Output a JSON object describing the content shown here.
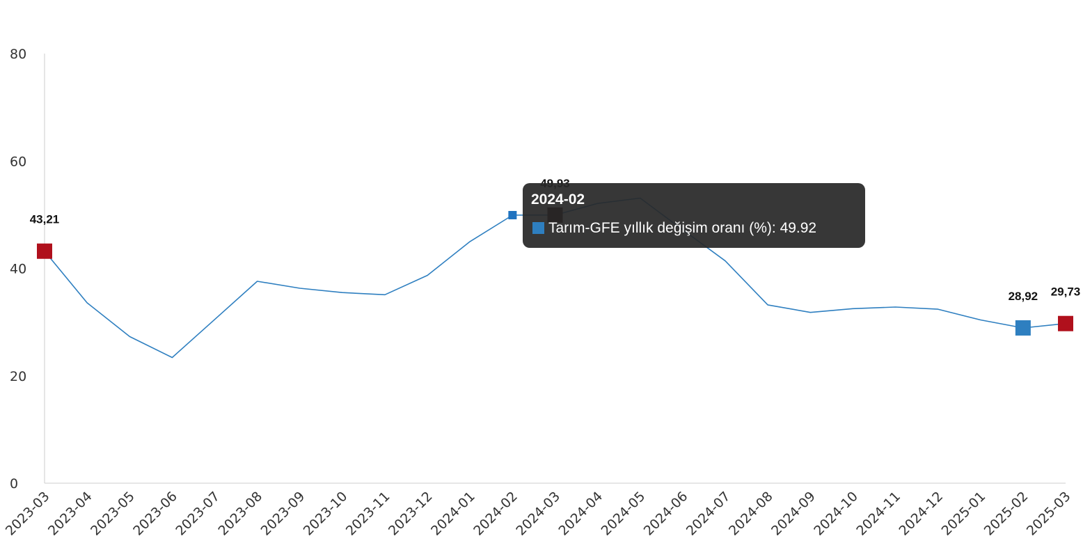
{
  "chart_data": {
    "type": "line",
    "categories": [
      "2023-03",
      "2023-04",
      "2023-05",
      "2023-06",
      "2023-07",
      "2023-08",
      "2023-09",
      "2023-10",
      "2023-11",
      "2023-12",
      "2024-01",
      "2024-02",
      "2024-03",
      "2024-04",
      "2024-05",
      "2024-06",
      "2024-07",
      "2024-08",
      "2024-09",
      "2024-10",
      "2024-11",
      "2024-12",
      "2025-01",
      "2025-02",
      "2025-03"
    ],
    "series": [
      {
        "name": "Tarım-GFE yıllık değişim oranı (%)",
        "color": "#2e7fc0",
        "values": [
          43.21,
          33.6,
          27.3,
          23.4,
          30.5,
          37.6,
          36.3,
          35.5,
          35.1,
          38.7,
          45.0,
          49.92,
          49.93,
          52.1,
          53.1,
          47.2,
          41.4,
          33.2,
          31.8,
          32.5,
          32.8,
          32.4,
          30.4,
          28.92,
          29.73
        ]
      }
    ],
    "ylim": [
      0,
      80
    ],
    "yticks": [
      0,
      20,
      40,
      60,
      80
    ],
    "grid": false,
    "markers": [
      {
        "index": 0,
        "color": "#b0101c",
        "label": "43,21"
      },
      {
        "index": 11,
        "color": "#1f73c0"
      },
      {
        "index": 12,
        "color": "#2a0000",
        "label": "49,93"
      },
      {
        "index": 23,
        "color": "#2e7fc0",
        "label": "28,92"
      },
      {
        "index": 24,
        "color": "#b0101c",
        "label": "29,73"
      }
    ],
    "tooltip": {
      "title": "2024-02",
      "series_label": "Tarım-GFE yıllık değişim oranı (%)",
      "value": "49.92"
    }
  }
}
